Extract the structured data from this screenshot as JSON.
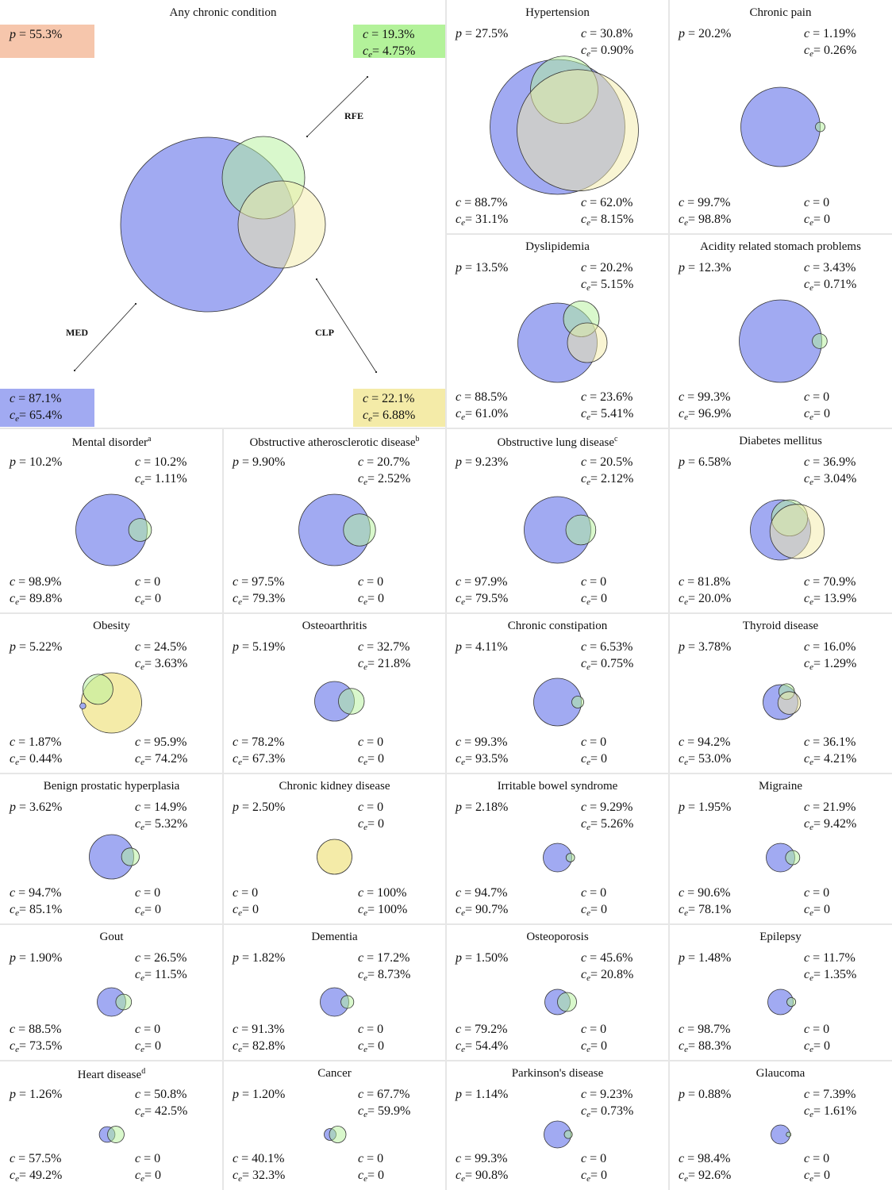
{
  "colors": {
    "med": "#a1aaf2",
    "rfe": "#b3f29a",
    "clp": "#f4eba8",
    "prevalence_box": "#f6c6ac",
    "divider": "#e6e6e6"
  },
  "main_panel": {
    "title": "Any chronic condition",
    "p_label": "p",
    "p_value": "= 55.3%",
    "arrows": {
      "rfe": "RFE",
      "med": "MED",
      "clp": "CLP"
    },
    "rfe_box": {
      "c": "= 19.3%",
      "ce": "= 4.75%"
    },
    "med_box": {
      "c": "= 87.1%",
      "ce": "= 65.4%"
    },
    "clp_box": {
      "c": "= 22.1%",
      "ce": "= 6.88%"
    },
    "venn": {
      "med": 87.1,
      "rfe": 19.3,
      "clp": 22.1
    }
  },
  "symbols": {
    "c": "c",
    "ce_base": "c",
    "ce_sub": "e",
    "p": "p"
  },
  "conditions": [
    {
      "name": "Hypertension",
      "sup": "",
      "p": "= 27.5%",
      "rfe_c": "= 30.8%",
      "rfe_ce": "= 0.90%",
      "med_c": "= 88.7%",
      "med_ce": "= 31.1%",
      "clp_c": "= 62.0%",
      "clp_ce": "= 8.15%",
      "venn": {
        "med": [
          0,
          0,
          1.0
        ],
        "rfe": [
          0.1,
          -0.55,
          0.5
        ],
        "clp": [
          0.3,
          0.05,
          0.9
        ]
      }
    },
    {
      "name": "Chronic pain",
      "sup": "",
      "p": "= 20.2%",
      "rfe_c": "= 1.19%",
      "rfe_ce": "= 0.26%",
      "med_c": "= 99.7%",
      "med_ce": "= 98.8%",
      "clp_c": "= 0",
      "clp_ce": "= 0",
      "venn": {
        "med": [
          0,
          0,
          1.0
        ],
        "rfe": [
          1.0,
          0,
          0.12
        ],
        "clp": null
      }
    },
    {
      "name": "Dyslipidemia",
      "sup": "",
      "p": "= 13.5%",
      "rfe_c": "= 20.2%",
      "rfe_ce": "= 5.15%",
      "med_c": "= 88.5%",
      "med_ce": "= 61.0%",
      "clp_c": "= 23.6%",
      "clp_ce": "= 5.41%",
      "venn": {
        "med": [
          0,
          0,
          1.0
        ],
        "rfe": [
          0.6,
          -0.6,
          0.45
        ],
        "clp": [
          0.75,
          0.0,
          0.5
        ]
      }
    },
    {
      "name": "Acidity related stomach problems",
      "sup": "",
      "p": "= 12.3%",
      "rfe_c": "= 3.43%",
      "rfe_ce": "= 0.71%",
      "med_c": "= 99.3%",
      "med_ce": "= 96.9%",
      "clp_c": "= 0",
      "clp_ce": "= 0",
      "venn": {
        "med": [
          0,
          0,
          1.0
        ],
        "rfe": [
          0.95,
          0,
          0.18
        ],
        "clp": null
      }
    },
    {
      "name": "Mental disorder",
      "sup": "a",
      "p": "= 10.2%",
      "rfe_c": "= 10.2%",
      "rfe_ce": "= 1.11%",
      "med_c": "= 98.9%",
      "med_ce": "= 89.8%",
      "clp_c": "= 0",
      "clp_ce": "= 0",
      "venn": {
        "med": [
          0,
          0,
          1.0
        ],
        "rfe": [
          0.8,
          0,
          0.32
        ],
        "clp": null
      }
    },
    {
      "name": "Obstructive atherosclerotic disease",
      "sup": "b",
      "p": "= 9.90%",
      "rfe_c": "= 20.7%",
      "rfe_ce": "= 2.52%",
      "med_c": "= 97.5%",
      "med_ce": "= 79.3%",
      "clp_c": "= 0",
      "clp_ce": "= 0",
      "venn": {
        "med": [
          0,
          0,
          1.0
        ],
        "rfe": [
          0.7,
          0,
          0.45
        ],
        "clp": null
      }
    },
    {
      "name": "Obstructive lung disease",
      "sup": "c",
      "p": "= 9.23%",
      "rfe_c": "= 20.5%",
      "rfe_ce": "= 2.12%",
      "med_c": "= 97.9%",
      "med_ce": "= 79.5%",
      "clp_c": "= 0",
      "clp_ce": "= 0",
      "venn": {
        "med": [
          0,
          0,
          1.0
        ],
        "rfe": [
          0.7,
          0,
          0.45
        ],
        "clp": null
      }
    },
    {
      "name": "Diabetes mellitus",
      "sup": "",
      "p": "= 6.58%",
      "rfe_c": "= 36.9%",
      "rfe_ce": "= 3.04%",
      "med_c": "= 81.8%",
      "med_ce": "= 20.0%",
      "clp_c": "= 70.9%",
      "clp_ce": "= 13.9%",
      "venn": {
        "med": [
          0,
          0,
          1.0
        ],
        "rfe": [
          0.3,
          -0.4,
          0.6
        ],
        "clp": [
          0.55,
          0.05,
          0.9
        ]
      }
    },
    {
      "name": "Obesity",
      "sup": "",
      "p": "= 5.22%",
      "rfe_c": "= 24.5%",
      "rfe_ce": "= 3.63%",
      "med_c": "= 1.87%",
      "med_ce": "= 0.44%",
      "clp_c": "= 95.9%",
      "clp_ce": "= 74.2%",
      "venn": {
        "med": [
          -0.95,
          0.1,
          0.1
        ],
        "rfe": [
          -0.45,
          -0.45,
          0.5
        ],
        "clp": [
          0,
          0,
          1.0
        ]
      }
    },
    {
      "name": "Osteoarthritis",
      "sup": "",
      "p": "= 5.19%",
      "rfe_c": "= 32.7%",
      "rfe_ce": "= 21.8%",
      "med_c": "= 78.2%",
      "med_ce": "= 67.3%",
      "clp_c": "= 0",
      "clp_ce": "= 0",
      "venn": {
        "med": [
          0,
          0,
          1.0
        ],
        "rfe": [
          0.85,
          0,
          0.65
        ],
        "clp": null
      }
    },
    {
      "name": "Chronic constipation",
      "sup": "",
      "p": "= 4.11%",
      "rfe_c": "= 6.53%",
      "rfe_ce": "= 0.75%",
      "med_c": "= 99.3%",
      "med_ce": "= 93.5%",
      "clp_c": "= 0",
      "clp_ce": "= 0",
      "venn": {
        "med": [
          0,
          0,
          1.0
        ],
        "rfe": [
          0.85,
          0,
          0.25
        ],
        "clp": null
      }
    },
    {
      "name": "Thyroid disease",
      "sup": "",
      "p": "= 3.78%",
      "rfe_c": "= 16.0%",
      "rfe_ce": "= 1.29%",
      "med_c": "= 94.2%",
      "med_ce": "= 53.0%",
      "clp_c": "= 36.1%",
      "clp_ce": "= 4.21%",
      "venn": {
        "med": [
          0,
          0,
          1.0
        ],
        "rfe": [
          0.35,
          -0.6,
          0.45
        ],
        "clp": [
          0.5,
          0.05,
          0.65
        ]
      }
    },
    {
      "name": "Benign prostatic hyperplasia",
      "sup": "",
      "p": "= 3.62%",
      "rfe_c": "= 14.9%",
      "rfe_ce": "= 5.32%",
      "med_c": "= 94.7%",
      "med_ce": "= 85.1%",
      "clp_c": "= 0",
      "clp_ce": "= 0",
      "venn": {
        "med": [
          0,
          0,
          1.0
        ],
        "rfe": [
          0.85,
          0,
          0.4
        ],
        "clp": null
      }
    },
    {
      "name": "Chronic kidney disease",
      "sup": "",
      "p": "= 2.50%",
      "rfe_c": "= 0",
      "rfe_ce": "= 0",
      "med_c": "= 0",
      "med_ce": "= 0",
      "clp_c": "= 100%",
      "clp_ce": "= 100%",
      "venn": {
        "med": null,
        "rfe": null,
        "clp": [
          0,
          0,
          1.0
        ]
      }
    },
    {
      "name": "Irritable bowel syndrome",
      "sup": "",
      "p": "= 2.18%",
      "rfe_c": "= 9.29%",
      "rfe_ce": "= 5.26%",
      "med_c": "= 94.7%",
      "med_ce": "= 90.7%",
      "clp_c": "= 0",
      "clp_ce": "= 0",
      "venn": {
        "med": [
          0,
          0,
          1.0
        ],
        "rfe": [
          0.9,
          0,
          0.3
        ],
        "clp": null
      }
    },
    {
      "name": "Migraine",
      "sup": "",
      "p": "= 1.95%",
      "rfe_c": "= 21.9%",
      "rfe_ce": "= 9.42%",
      "med_c": "= 90.6%",
      "med_ce": "= 78.1%",
      "clp_c": "= 0",
      "clp_ce": "= 0",
      "venn": {
        "med": [
          0,
          0,
          1.0
        ],
        "rfe": [
          0.85,
          0,
          0.5
        ],
        "clp": null
      }
    },
    {
      "name": "Gout",
      "sup": "",
      "p": "= 1.90%",
      "rfe_c": "= 26.5%",
      "rfe_ce": "= 11.5%",
      "med_c": "= 88.5%",
      "med_ce": "= 73.5%",
      "clp_c": "= 0",
      "clp_ce": "= 0",
      "venn": {
        "med": [
          0,
          0,
          1.0
        ],
        "rfe": [
          0.85,
          0,
          0.55
        ],
        "clp": null
      }
    },
    {
      "name": "Dementia",
      "sup": "",
      "p": "= 1.82%",
      "rfe_c": "= 17.2%",
      "rfe_ce": "= 8.73%",
      "med_c": "= 91.3%",
      "med_ce": "= 82.8%",
      "clp_c": "= 0",
      "clp_ce": "= 0",
      "venn": {
        "med": [
          0,
          0,
          1.0
        ],
        "rfe": [
          0.9,
          0,
          0.45
        ],
        "clp": null
      }
    },
    {
      "name": "Osteoporosis",
      "sup": "",
      "p": "= 1.50%",
      "rfe_c": "= 45.6%",
      "rfe_ce": "= 20.8%",
      "med_c": "= 79.2%",
      "med_ce": "= 54.4%",
      "clp_c": "= 0",
      "clp_ce": "= 0",
      "venn": {
        "med": [
          0,
          0,
          1.0
        ],
        "rfe": [
          0.75,
          0,
          0.75
        ],
        "clp": null
      }
    },
    {
      "name": "Epilepsy",
      "sup": "",
      "p": "= 1.48%",
      "rfe_c": "= 11.7%",
      "rfe_ce": "= 1.35%",
      "med_c": "= 98.7%",
      "med_ce": "= 88.3%",
      "clp_c": "= 0",
      "clp_ce": "= 0",
      "venn": {
        "med": [
          0,
          0,
          1.0
        ],
        "rfe": [
          0.85,
          0,
          0.35
        ],
        "clp": null
      }
    },
    {
      "name": "Heart disease",
      "sup": "d",
      "p": "= 1.26%",
      "rfe_c": "= 50.8%",
      "rfe_ce": "= 42.5%",
      "med_c": "= 57.5%",
      "med_ce": "= 49.2%",
      "clp_c": "= 0",
      "clp_ce": "= 0",
      "venn": {
        "med": [
          -0.5,
          0,
          0.9
        ],
        "rfe": [
          0.5,
          0,
          0.95
        ],
        "clp": null
      }
    },
    {
      "name": "Cancer",
      "sup": "",
      "p": "= 1.20%",
      "rfe_c": "= 67.7%",
      "rfe_ce": "= 59.9%",
      "med_c": "= 40.1%",
      "med_ce": "= 32.3%",
      "clp_c": "= 0",
      "clp_ce": "= 0",
      "venn": {
        "med": [
          -0.55,
          0,
          0.75
        ],
        "rfe": [
          0.4,
          0,
          1.05
        ],
        "clp": null
      }
    },
    {
      "name": "Parkinson's disease",
      "sup": "",
      "p": "= 1.14%",
      "rfe_c": "= 9.23%",
      "rfe_ce": "= 0.73%",
      "med_c": "= 99.3%",
      "med_ce": "= 90.8%",
      "clp_c": "= 0",
      "clp_ce": "= 0",
      "venn": {
        "med": [
          0,
          0,
          1.0
        ],
        "rfe": [
          0.8,
          0,
          0.3
        ],
        "clp": null
      }
    },
    {
      "name": "Glaucoma",
      "sup": "",
      "p": "= 0.88%",
      "rfe_c": "= 7.39%",
      "rfe_ce": "= 1.61%",
      "med_c": "= 98.4%",
      "med_ce": "= 92.6%",
      "clp_c": "= 0",
      "clp_ce": "= 0",
      "venn": {
        "med": [
          0,
          0,
          1.0
        ],
        "rfe": [
          0.85,
          0,
          0.25
        ],
        "clp": null
      }
    }
  ]
}
